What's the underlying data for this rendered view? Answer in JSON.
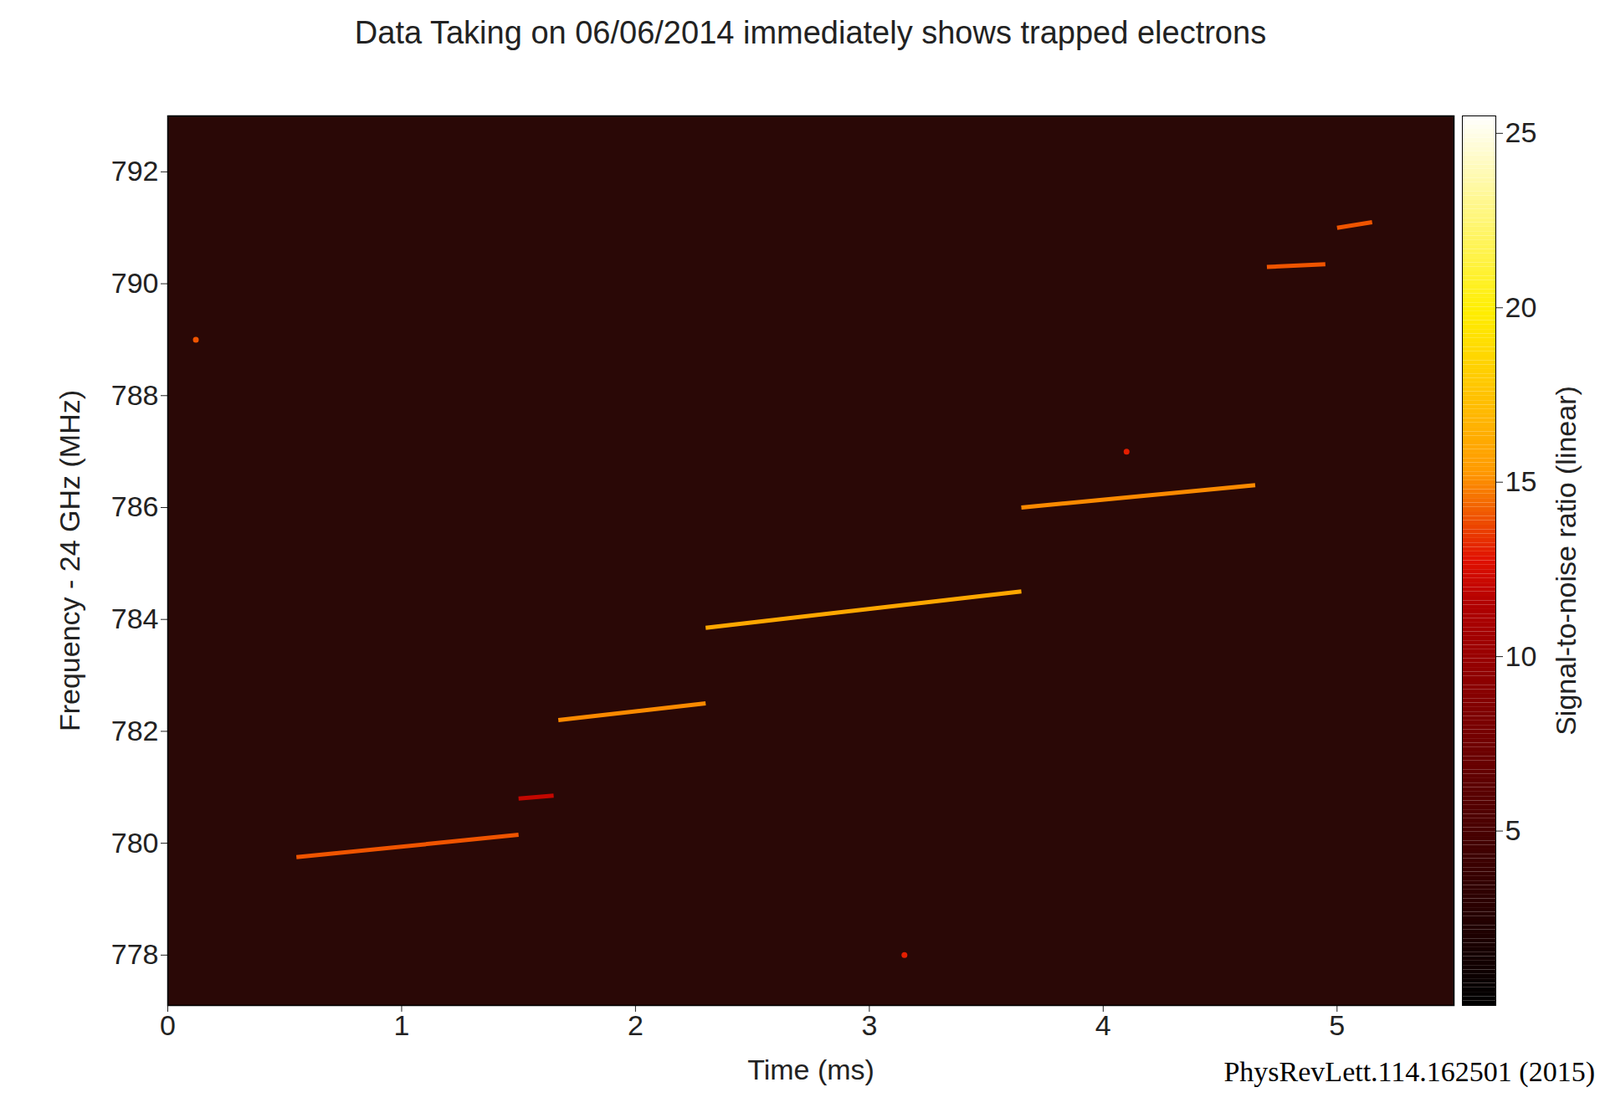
{
  "chart_data": {
    "type": "spectrogram",
    "title": "Data Taking on 06/06/2014 immediately shows trapped electrons",
    "caption": "PhysRevLett.114.162501 (2015)",
    "x_label": "Time (ms)",
    "y_label": "Frequency - 24 GHz (MHz)",
    "xlim": [
      0,
      5.5
    ],
    "xticks": [
      0,
      1,
      2,
      3,
      4,
      5
    ],
    "ylim": [
      777.1,
      793.0
    ],
    "yticks": [
      778,
      780,
      782,
      784,
      786,
      788,
      790,
      792
    ],
    "segments": {
      "x_start": [
        0.55,
        1.5,
        1.67,
        2.3,
        3.65,
        4.7,
        5.0
      ],
      "x_end": [
        1.5,
        1.65,
        2.3,
        3.65,
        4.65,
        4.95,
        5.15
      ],
      "y_start": [
        779.75,
        780.8,
        782.2,
        783.85,
        786.0,
        790.3,
        791.0
      ],
      "y_end": [
        780.15,
        780.85,
        782.5,
        784.5,
        786.4,
        790.35,
        791.1
      ],
      "snr": [
        14,
        12,
        15,
        16,
        15,
        14,
        14
      ]
    },
    "points": {
      "x": [
        0.12,
        4.1,
        3.15
      ],
      "y": [
        789.0,
        787.0,
        778.0
      ],
      "snr": [
        14,
        13,
        13
      ]
    },
    "colorbar": {
      "label": "Signal-to-noise ratio (linear)",
      "lim": [
        0,
        25.5
      ],
      "ticks": [
        5,
        10,
        15,
        20,
        25
      ]
    }
  }
}
